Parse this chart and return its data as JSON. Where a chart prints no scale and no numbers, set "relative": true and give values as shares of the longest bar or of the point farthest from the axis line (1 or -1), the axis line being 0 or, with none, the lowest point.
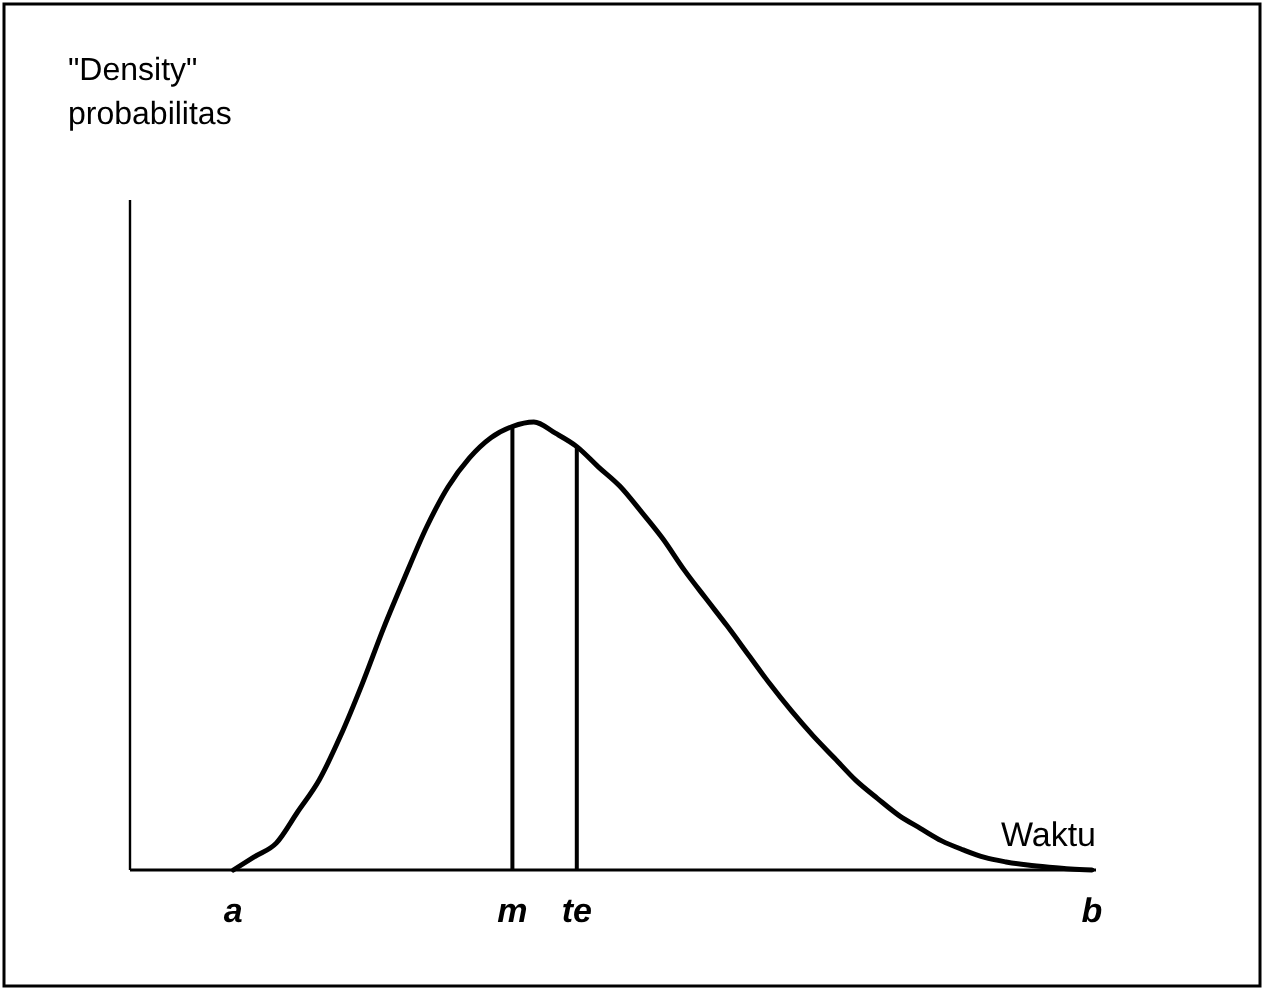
{
  "chart_data": {
    "type": "line",
    "relative": true,
    "annotations": [
      "\"Density\" probabilitas"
    ],
    "xlabel": "Waktu",
    "categories": [
      null,
      null,
      null,
      null,
      null,
      "a",
      null,
      null,
      null,
      null,
      null,
      null,
      null,
      null,
      null,
      null,
      null,
      null,
      "m",
      null,
      null,
      "te",
      null,
      null,
      null,
      null,
      null,
      null,
      null,
      null,
      null,
      null,
      null,
      null,
      null,
      null,
      null,
      null,
      null,
      null,
      null,
      null,
      null,
      null,
      null,
      "b"
    ],
    "ref_lines": [
      {
        "axis": "x",
        "value": "m"
      },
      {
        "axis": "x",
        "value": "te"
      }
    ],
    "grid": false,
    "marker": "none",
    "line_style": "solid",
    "series": [
      {
        "color": "#000000",
        "values": [
          null,
          null,
          null,
          null,
          null,
          0,
          0.03,
          0.06,
          0.13,
          0.201,
          0.3,
          0.415,
          0.54,
          0.655,
          0.765,
          0.855,
          0.92,
          0.965,
          0.99,
          1,
          0.975,
          0.945,
          0.9,
          0.857,
          0.8,
          0.74,
          0.67,
          0.607,
          0.545,
          0.48,
          0.415,
          0.355,
          0.3,
          0.25,
          0.2,
          0.16,
          0.122,
          0.093,
          0.065,
          0.045,
          0.028,
          0.018,
          0.011,
          0.006,
          0.002,
          0
        ]
      }
    ]
  }
}
